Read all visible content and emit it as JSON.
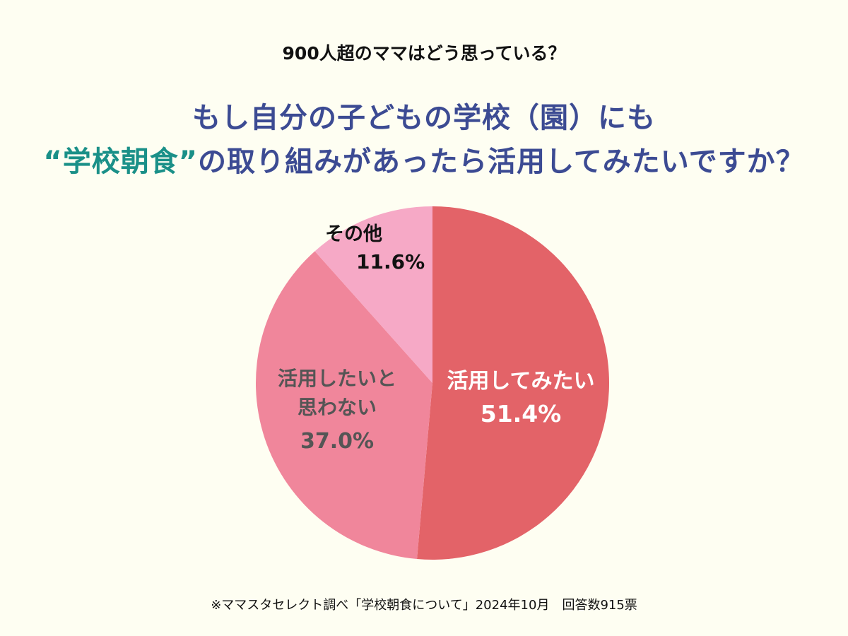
{
  "subtitle": "900人超のママはどう思っている？",
  "title_line1": "もし自分の子どもの学校（園）にも",
  "title_line2_highlight": "“学校朝食”",
  "title_line2_rest": "の取り組みがあったら活用してみたいですか？",
  "source": "※ママスタセレクト調べ「学校朝食について」2024年10月　回答数915票",
  "colors": {
    "title": "#3c4b93",
    "highlight": "#1a9088",
    "background": "#fefef2"
  },
  "chart_data": {
    "type": "pie",
    "start": "top",
    "direction": "clockwise",
    "slices": [
      {
        "label": "活用してみたい",
        "value": 51.4,
        "value_label": "51.4%",
        "color": "#e36368",
        "text_color": "#ffffff"
      },
      {
        "label": "活用したいと思わない",
        "label_lines": [
          "活用したいと",
          "思わない"
        ],
        "value": 37.0,
        "value_label": "37.0%",
        "color": "#f0869b",
        "text_color": "#555555"
      },
      {
        "label": "その他",
        "value": 11.6,
        "value_label": "11.6%",
        "color": "#f6a9c6",
        "text_color": "#111111"
      }
    ]
  }
}
